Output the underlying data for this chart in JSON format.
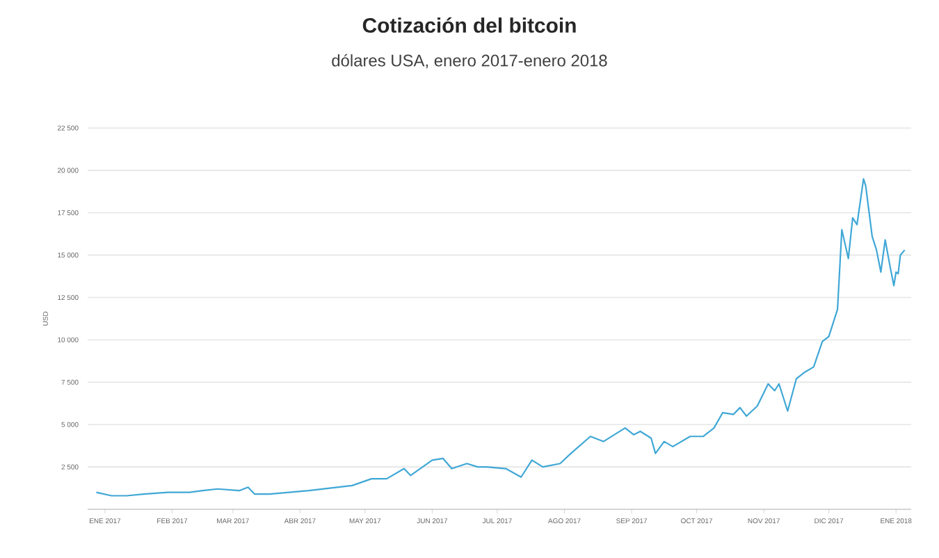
{
  "chart_data": {
    "type": "line",
    "title": "Cotización del bitcoin",
    "subtitle": "dólares USA, enero 2017-enero 2018",
    "ylabel": "USD",
    "x": [
      "2016-12-28",
      "2017-01-04",
      "2017-01-11",
      "2017-01-19",
      "2017-01-30",
      "2017-02-09",
      "2017-02-15",
      "2017-02-22",
      "2017-03-04",
      "2017-03-08",
      "2017-03-11",
      "2017-03-18",
      "2017-04-05",
      "2017-04-25",
      "2017-05-04",
      "2017-05-11",
      "2017-05-19",
      "2017-05-22",
      "2017-06-01",
      "2017-06-06",
      "2017-06-10",
      "2017-06-17",
      "2017-06-22",
      "2017-06-26",
      "2017-07-05",
      "2017-07-12",
      "2017-07-17",
      "2017-07-22",
      "2017-07-30",
      "2017-08-04",
      "2017-08-13",
      "2017-08-19",
      "2017-08-29",
      "2017-09-02",
      "2017-09-05",
      "2017-09-10",
      "2017-09-12",
      "2017-09-16",
      "2017-09-20",
      "2017-09-28",
      "2017-10-04",
      "2017-10-09",
      "2017-10-13",
      "2017-10-18",
      "2017-10-21",
      "2017-10-24",
      "2017-10-29",
      "2017-11-03",
      "2017-11-06",
      "2017-11-08",
      "2017-11-12",
      "2017-11-16",
      "2017-11-20",
      "2017-11-24",
      "2017-11-28",
      "2017-12-01",
      "2017-12-05",
      "2017-12-07",
      "2017-12-10",
      "2017-12-12",
      "2017-12-14",
      "2017-12-17",
      "2017-12-18",
      "2017-12-21",
      "2017-12-23",
      "2017-12-25",
      "2017-12-27",
      "2017-12-29",
      "2017-12-31",
      "2018-01-01",
      "2018-01-02",
      "2018-01-03",
      "2018-01-05"
    ],
    "series": [
      {
        "color": "#3fa7d6",
        "values": [
          1000,
          800,
          800,
          900,
          1000,
          1000,
          1100,
          1200,
          1100,
          1300,
          900,
          900,
          1100,
          1400,
          1800,
          1800,
          2400,
          2000,
          2900,
          3000,
          2400,
          2700,
          2500,
          2500,
          2400,
          1900,
          2900,
          2500,
          2700,
          3300,
          4300,
          4000,
          4800,
          4400,
          4600,
          4200,
          3300,
          4000,
          3700,
          4300,
          4300,
          4800,
          5700,
          5600,
          6000,
          5500,
          6100,
          7400,
          7000,
          7400,
          5800,
          7700,
          8100,
          8400,
          9900,
          10200,
          11800,
          16500,
          14800,
          17200,
          16800,
          19500,
          19100,
          16100,
          15300,
          14000,
          15900,
          14500,
          13200,
          14000,
          13900,
          15000,
          15300
        ]
      }
    ],
    "xlim": [
      "2016-12-24",
      "2018-01-08"
    ],
    "xticks": [
      {
        "value": "2017-01-01",
        "label": "ENE 2017"
      },
      {
        "value": "2017-02-01",
        "label": "FEB 2017"
      },
      {
        "value": "2017-03-01",
        "label": "MAR 2017"
      },
      {
        "value": "2017-04-01",
        "label": "ABR 2017"
      },
      {
        "value": "2017-05-01",
        "label": "MAY 2017"
      },
      {
        "value": "2017-06-01",
        "label": "JUN 2017"
      },
      {
        "value": "2017-07-01",
        "label": "JUL 2017"
      },
      {
        "value": "2017-08-01",
        "label": "AGO 2017"
      },
      {
        "value": "2017-09-01",
        "label": "SEP 2017"
      },
      {
        "value": "2017-10-01",
        "label": "OCT 2017"
      },
      {
        "value": "2017-11-01",
        "label": "NOV 2017"
      },
      {
        "value": "2017-12-01",
        "label": "DIC 2017"
      },
      {
        "value": "2018-01-01",
        "label": "ENE 2018"
      }
    ],
    "ylim": [
      0,
      22500
    ],
    "yticks": [
      {
        "value": 0,
        "label": null
      },
      {
        "value": 2500,
        "label": "2 500"
      },
      {
        "value": 5000,
        "label": "5 000"
      },
      {
        "value": 7500,
        "label": "7 500"
      },
      {
        "value": 10000,
        "label": "10 000"
      },
      {
        "value": 12500,
        "label": "12 500"
      },
      {
        "value": 15000,
        "label": "15 000"
      },
      {
        "value": 17500,
        "label": "17 500"
      },
      {
        "value": 20000,
        "label": "20 000"
      },
      {
        "value": 22500,
        "label": "22 500"
      }
    ],
    "grid": "y",
    "marker": "none",
    "line_style": "solid"
  }
}
